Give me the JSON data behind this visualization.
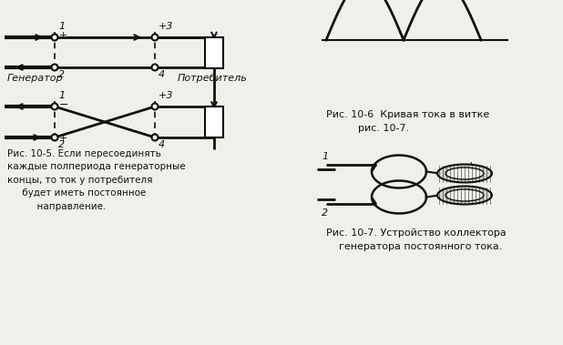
{
  "bg_color": "#f0f0eb",
  "line_color": "#111111",
  "text_color": "#111111",
  "fig_caption_1": "Рис. 10-5. Если пересоединять\nкаждые полпериода генераторные\nконцы, то ток у потребителя\n     будет иметь постоянное\n          направление.",
  "fig_caption_2": "Рис. 10-6  Кривая тока в витке\n          рис. 10-7.",
  "fig_caption_3": "Рис. 10-7. Устройство коллектора\n    генератора постоянного тока.",
  "label_generator": "Генератор",
  "label_consumer": "Потребитель"
}
